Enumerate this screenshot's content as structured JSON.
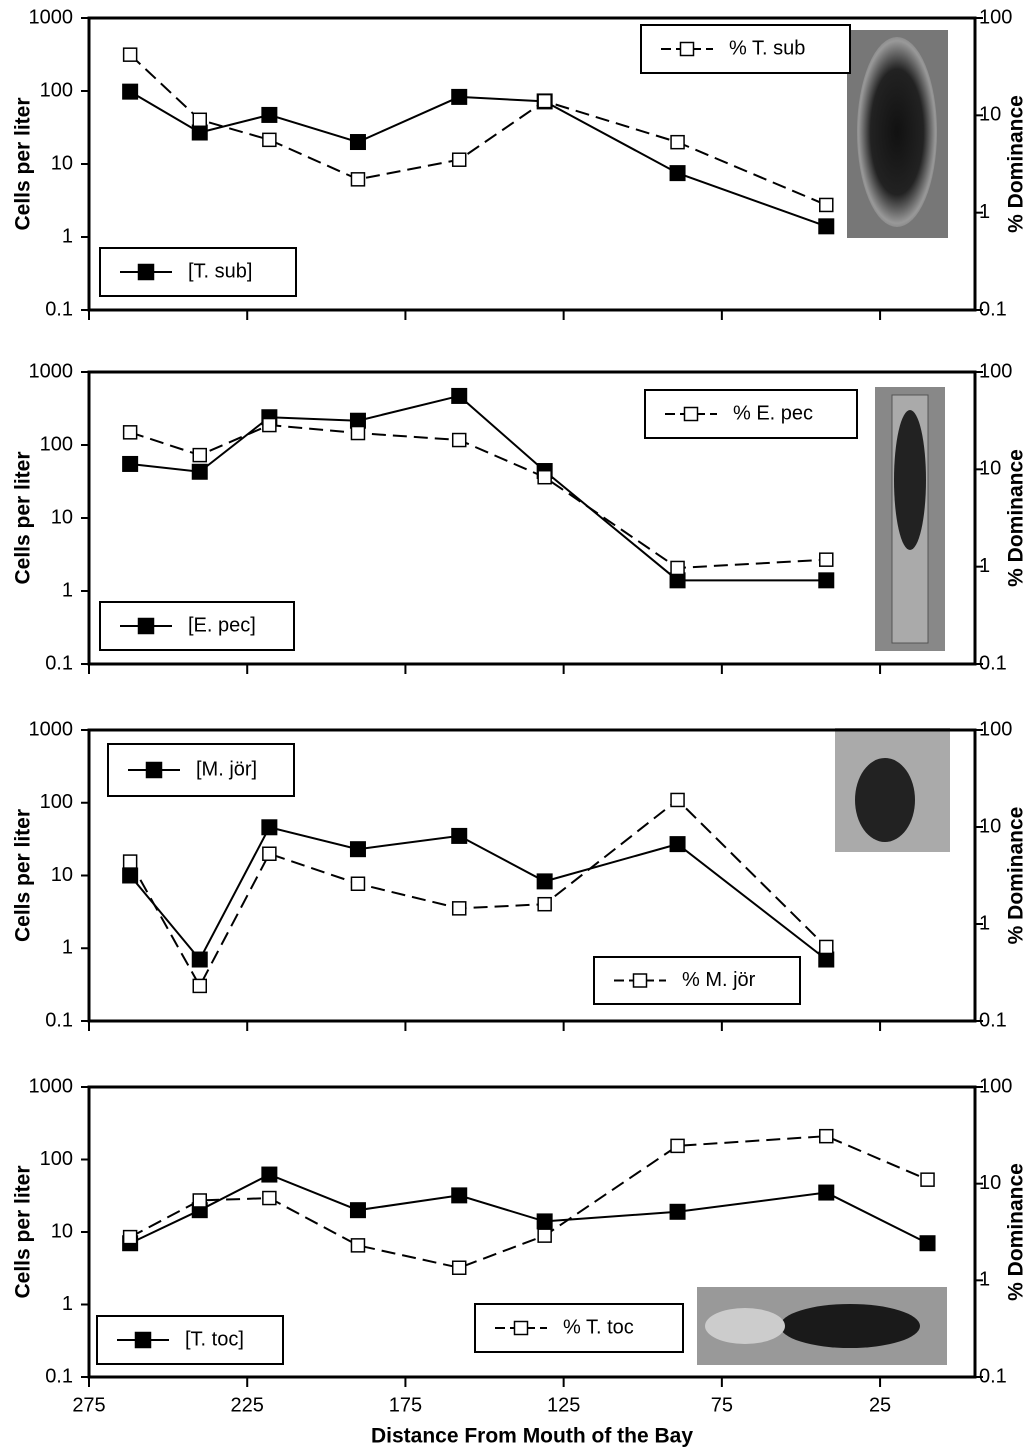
{
  "chart_data": [
    {
      "type": "line",
      "log_y": true,
      "ylabel": "Cells per liter",
      "y2label": "% Dominance",
      "xlim": [
        275,
        -5
      ],
      "ylim": [
        0.1,
        1000
      ],
      "yticks": [
        0.1,
        1,
        10,
        100,
        1000
      ],
      "y2lim": [
        0.1,
        100
      ],
      "y2ticks": [
        0.1,
        1,
        10,
        100
      ],
      "series": [
        {
          "name": "[T. sub]",
          "color": "#000000",
          "marker": "filled",
          "x": [
            262,
            240,
            218,
            190,
            158,
            131,
            89,
            42
          ],
          "values": [
            98,
            27,
            47,
            20,
            83,
            72,
            7.5,
            1.4
          ]
        },
        {
          "name": "% T. sub",
          "color": "#000000",
          "marker": "open",
          "axis": "y2",
          "x": [
            262,
            240,
            218,
            190,
            158,
            131,
            89,
            42
          ],
          "values": [
            42,
            9,
            5.6,
            2.2,
            3.5,
            14,
            5.3,
            1.2
          ]
        }
      ]
    },
    {
      "type": "line",
      "log_y": true,
      "ylabel": "Cells per liter",
      "y2label": "% Dominance",
      "xlim": [
        275,
        -5
      ],
      "ylim": [
        0.1,
        1000
      ],
      "yticks": [
        0.1,
        1,
        10,
        100,
        1000
      ],
      "y2lim": [
        0.1,
        100
      ],
      "y2ticks": [
        0.1,
        1,
        10,
        100
      ],
      "series": [
        {
          "name": "[E. pec]",
          "color": "#000000",
          "marker": "filled",
          "x": [
            262,
            240,
            218,
            190,
            158,
            131,
            89,
            42
          ],
          "values": [
            55,
            43,
            240,
            215,
            470,
            44,
            1.4,
            1.4
          ]
        },
        {
          "name": "% E. pec",
          "color": "#000000",
          "marker": "open",
          "axis": "y2",
          "x": [
            262,
            240,
            218,
            190,
            158,
            131,
            89,
            42
          ],
          "values": [
            24,
            14,
            28.5,
            23.6,
            20,
            8.3,
            0.97,
            1.18
          ]
        }
      ]
    },
    {
      "type": "line",
      "log_y": true,
      "ylabel": "Cells per liter",
      "y2label": "% Dominance",
      "xlim": [
        275,
        -5
      ],
      "ylim": [
        0.1,
        1000
      ],
      "yticks": [
        0.1,
        1,
        10,
        100,
        1000
      ],
      "y2lim": [
        0.1,
        100
      ],
      "y2ticks": [
        0.1,
        1,
        10,
        100
      ],
      "series": [
        {
          "name": "[M. jör]",
          "color": "#000000",
          "marker": "filled",
          "x": [
            262,
            240,
            218,
            190,
            158,
            131,
            89,
            42
          ],
          "values": [
            10,
            0.7,
            46,
            23,
            35,
            8.3,
            27,
            0.7
          ]
        },
        {
          "name": "% M. jör",
          "color": "#000000",
          "marker": "open",
          "axis": "y2",
          "x": [
            262,
            240,
            218,
            190,
            158,
            131,
            89,
            42
          ],
          "values": [
            4.4,
            0.23,
            5.3,
            2.6,
            1.45,
            1.6,
            19,
            0.58
          ]
        }
      ]
    },
    {
      "type": "line",
      "log_y": true,
      "ylabel": "Cells per liter",
      "y2label": "% Dominance",
      "xlabel": "Distance From Mouth of the Bay",
      "xlim": [
        275,
        -5
      ],
      "xticks": [
        275,
        225,
        175,
        125,
        75,
        25
      ],
      "ylim": [
        0.1,
        1000
      ],
      "yticks": [
        0.1,
        1,
        10,
        100,
        1000
      ],
      "y2lim": [
        0.1,
        100
      ],
      "y2ticks": [
        0.1,
        1,
        10,
        100
      ],
      "series": [
        {
          "name": "[T. toc]",
          "color": "#000000",
          "marker": "filled",
          "x": [
            262,
            240,
            218,
            190,
            158,
            131,
            89,
            42,
            10
          ],
          "values": [
            7,
            20,
            62,
            20,
            32,
            14,
            19,
            35,
            7
          ]
        },
        {
          "name": "% T. toc",
          "color": "#000000",
          "marker": "open",
          "axis": "y2",
          "x": [
            262,
            240,
            218,
            190,
            158,
            131,
            89,
            42,
            10
          ],
          "values": [
            2.8,
            6.7,
            7.1,
            2.3,
            1.35,
            2.9,
            24.6,
            31,
            11
          ]
        }
      ]
    }
  ]
}
